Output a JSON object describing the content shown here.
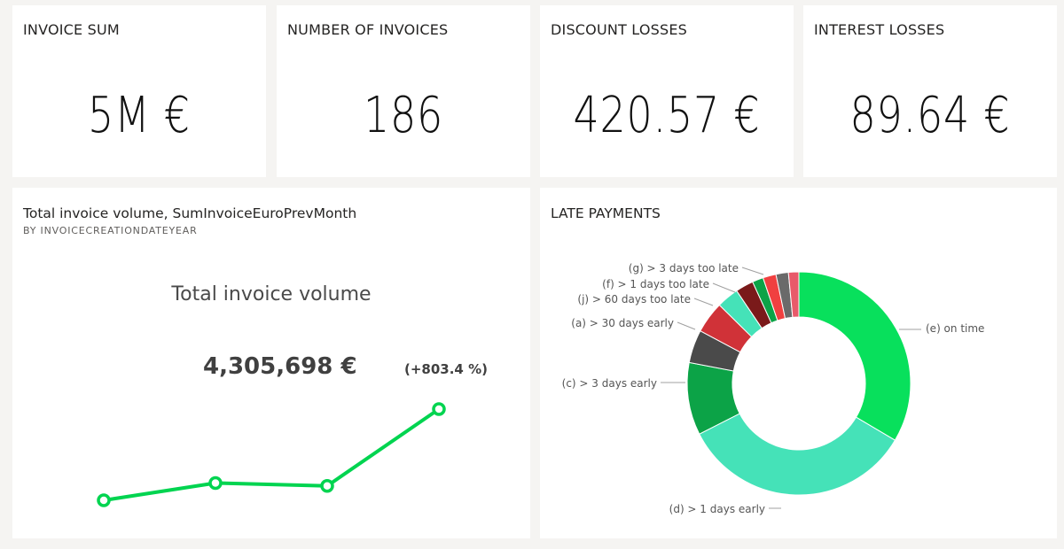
{
  "kpis": [
    {
      "title": "INVOICE SUM",
      "value": "5M €"
    },
    {
      "title": "NUMBER OF INVOICES",
      "value": "186"
    },
    {
      "title": "DISCOUNT LOSSES",
      "value": "420.57 €"
    },
    {
      "title": "INTEREST LOSSES",
      "value": "89.64 €"
    }
  ],
  "volume_chart": {
    "title": "Total invoice volume, SumInvoiceEuroPrevMonth",
    "subtitle": "BY INVOICECREATIONDATEYEAR",
    "kpi_label": "Total invoice volume",
    "kpi_value": "4,305,698 €",
    "kpi_change": "(+803.4 %)",
    "line_color": "#00d450"
  },
  "late_payments": {
    "title": "LATE PAYMENTS"
  },
  "chart_data": [
    {
      "type": "line",
      "title": "",
      "series": [
        {
          "values": [
            0.05,
            0.23,
            0.2,
            1.0
          ]
        }
      ],
      "note_values": "relative trend only; no axis printed"
    },
    {
      "type": "pie",
      "title": "LATE PAYMENTS",
      "donut": true,
      "slices": [
        {
          "label": "(e) on time",
          "value": 33.5,
          "color": "#08e05c"
        },
        {
          "label": "(d) > 1 days early",
          "value": 34.0,
          "color": "#45e2b8"
        },
        {
          "label": "(c) > 3 days early",
          "value": 10.5,
          "color": "#0ca347"
        },
        {
          "label": "(a) > 30 days early",
          "value": 4.8,
          "color": "#4a4a4a"
        },
        {
          "label": "(j) > 60 days too late",
          "value": 4.6,
          "color": "#d03238"
        },
        {
          "label": "",
          "value": 3.2,
          "color": "#45e2b8"
        },
        {
          "label": "(f) > 1 days too late",
          "value": 2.6,
          "color": "#7a1a1a"
        },
        {
          "label": "",
          "value": 1.6,
          "color": "#0ca347"
        },
        {
          "label": "(g) > 3 days too late",
          "value": 1.9,
          "color": "#f04040"
        },
        {
          "label": "",
          "value": 1.8,
          "color": "#6a6a6a"
        },
        {
          "label": "",
          "value": 1.5,
          "color": "#e85a6a"
        }
      ]
    }
  ]
}
